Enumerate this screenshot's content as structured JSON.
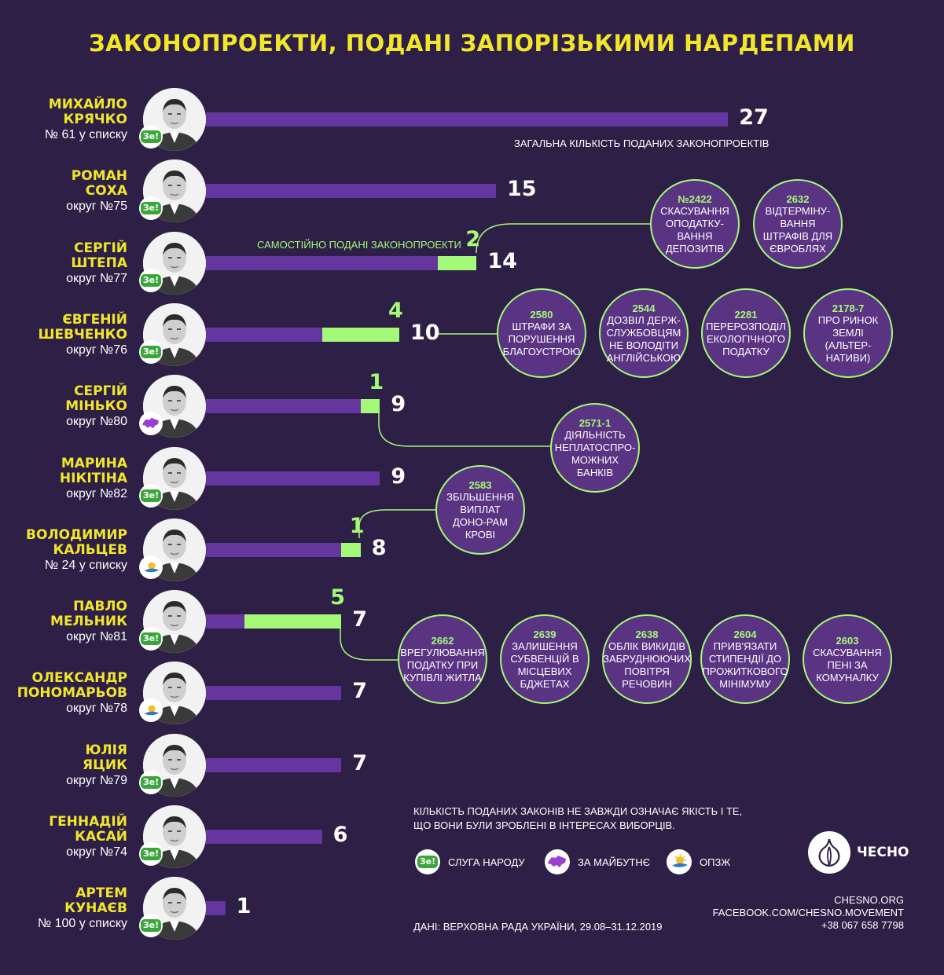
{
  "title": "ЗАКОНОПРОЕКТИ, ПОДАНІ ЗАПОРІЗЬКИМИ НАРДЕПАМИ",
  "notes": {
    "total_caption": "ЗАГАЛЬНА  КІЛЬКІСТЬ ПОДАНИХ ЗАКОНОПРОЕКТІВ",
    "self_caption": "САМОСТІЙНО ПОДАНІ ЗАКОНОПРОЕКТИ"
  },
  "badges": {
    "ze_text": "Зе!"
  },
  "colors": {
    "background": "#2d1f45",
    "title": "#f2e62a",
    "bar": "#6636a0",
    "self": "#a4fa78",
    "bubble": "#5a3383"
  },
  "chart_data": {
    "type": "bar",
    "orientation": "horizontal",
    "title": "ЗАКОНОПРОЕКТИ, ПОДАНІ ЗАПОРІЗЬКИМИ НАРДЕПАМИ",
    "categories": [
      "МИХАЙЛО КРЯЧКО",
      "РОМАН СОХА",
      "СЕРГІЙ ШТЕПА",
      "ЄВГЕНІЙ ШЕВЧЕНКО",
      "СЕРГІЙ МІНЬКО",
      "МАРИНА НІКІТІНА",
      "ВОЛОДИМИР КАЛЬЦЕВ",
      "ПАВЛО МЕЛЬНИК",
      "ОЛЕКСАНДР ПОНОМАРЬОВ",
      "ЮЛІЯ ЯЦИК",
      "ГЕННАДІЙ КАСАЙ",
      "АРТЕМ КУНАЄВ"
    ],
    "series": [
      {
        "name": "ЗАГАЛЬНА  КІЛЬКІСТЬ ПОДАНИХ ЗАКОНОПРОЕКТІВ",
        "values": [
          27,
          15,
          14,
          10,
          9,
          9,
          8,
          7,
          7,
          7,
          6,
          1
        ]
      },
      {
        "name": "САМОСТІЙНО ПОДАНІ ЗАКОНОПРОЕКТИ",
        "values": [
          0,
          0,
          2,
          4,
          1,
          0,
          1,
          5,
          0,
          0,
          0,
          0
        ]
      }
    ],
    "xlim": [
      0,
      27
    ],
    "rows": [
      {
        "first": "МИХАЙЛО",
        "last": "КРЯЧКО",
        "district": "№ 61 у списку",
        "party": "ze",
        "total": 27,
        "self": 0,
        "self_label": ""
      },
      {
        "first": "РОМАН",
        "last": "СОХА",
        "district": "округ №75",
        "party": "ze",
        "total": 15,
        "self": 0,
        "self_label": ""
      },
      {
        "first": "СЕРГІЙ",
        "last": "ШТЕПА",
        "district": "округ №77",
        "party": "ze",
        "total": 14,
        "self": 2,
        "self_label": "2"
      },
      {
        "first": "ЄВГЕНІЙ",
        "last": "ШЕВЧЕНКО",
        "district": "округ №76",
        "party": "ze",
        "total": 10,
        "self": 4,
        "self_label": "4"
      },
      {
        "first": "СЕРГІЙ",
        "last": "МІНЬКО",
        "district": "округ №80",
        "party": "maybutne",
        "total": 9,
        "self": 1,
        "self_label": "1"
      },
      {
        "first": "МАРИНА",
        "last": "НІКІТІНА",
        "district": "округ №82",
        "party": "ze",
        "total": 9,
        "self": 0,
        "self_label": ""
      },
      {
        "first": "ВОЛОДИМИР",
        "last": "КАЛЬЦЕВ",
        "district": "№ 24 у списку",
        "party": "opzzh",
        "total": 8,
        "self": 1,
        "self_label": "1"
      },
      {
        "first": "ПАВЛО",
        "last": "МЕЛЬНИК",
        "district": "округ №81",
        "party": "ze",
        "total": 7,
        "self": 5,
        "self_label": "5"
      },
      {
        "first": "ОЛЕКСАНДР",
        "last": "ПОНОМАРЬОВ",
        "district": "округ №78",
        "party": "opzzh",
        "total": 7,
        "self": 0,
        "self_label": ""
      },
      {
        "first": "ЮЛІЯ",
        "last": "ЯЦИК",
        "district": "округ №79",
        "party": "ze",
        "total": 7,
        "self": 0,
        "self_label": ""
      },
      {
        "first": "ГЕННАДІЙ",
        "last": "КАСАЙ",
        "district": "округ №74",
        "party": "ze",
        "total": 6,
        "self": 0,
        "self_label": ""
      },
      {
        "first": "АРТЕМ",
        "last": "КУНАЄВ",
        "district": "№ 100 у списку",
        "party": "ze",
        "total": 1,
        "self": 0,
        "self_label": ""
      }
    ]
  },
  "bills": [
    {
      "row": 2,
      "num": "№2422",
      "text": "СКАСУВАННЯ ОПОДАТКУ-ВАННЯ ДЕПОЗИТІВ"
    },
    {
      "row": 2,
      "num": "2632",
      "text": "ВІДТЕРМІНУ-ВАННЯ ШТРАФІВ ДЛЯ ЄВРОБЛЯХ"
    },
    {
      "row": 3,
      "num": "2580",
      "text": "ШТРАФИ ЗА ПОРУШЕННЯ БЛАГОУСТРОЮ"
    },
    {
      "row": 3,
      "num": "2544",
      "text": "ДОЗВІЛ ДЕРЖ-СЛУЖБОВЦЯМ НЕ ВОЛОДІТИ АНГЛІЙСЬКОЮ"
    },
    {
      "row": 3,
      "num": "2281",
      "text": "ПЕРЕРОЗПОДІЛ ЕКОЛОГІЧНОГО ПОДАТКУ"
    },
    {
      "row": 3,
      "num": "2178-7",
      "text": "ПРО РИНОК ЗЕМЛІ (АЛЬТЕР-НАТИВИ)"
    },
    {
      "row": 4,
      "num": "2571-1",
      "text": "ДІЯЛЬНІСТЬ НЕПЛАТОСПРО-МОЖНИХ БАНКІВ"
    },
    {
      "row": 6,
      "num": "2583",
      "text": "ЗБІЛЬШЕННЯ ВИПЛАТ ДОНО-РАМ КРОВІ"
    },
    {
      "row": 7,
      "num": "2662",
      "text": "ВРЕГУЛЮВАННЯ ПОДАТКУ ПРИ КУПІВЛІ ЖИТЛА"
    },
    {
      "row": 7,
      "num": "2639",
      "text": "ЗАЛИШЕННЯ СУБВЕНЦІЙ В МІСЦЕВИХ БДЖЕТАХ"
    },
    {
      "row": 7,
      "num": "2638",
      "text": "ОБЛІК ВИКИДІВ ЗАБРУДНЮЮЧИХ ПОВІТРЯ РЕЧОВИН"
    },
    {
      "row": 7,
      "num": "2604",
      "text": "ПРИВ'ЯЗАТИ СТИПЕНДІЇ ДО ПРОЖИТКОВОГО МІНІМУМУ"
    },
    {
      "row": 7,
      "num": "2603",
      "text": "СКАСУВАННЯ ПЕНІ ЗА КОМУНАЛКУ"
    }
  ],
  "footer": {
    "disclaimer_1": "КІЛЬКІСТЬ ПОДАНИХ ЗАКОНІВ НЕ ЗАВЖДИ ОЗНАЧАЄ ЯКІСТЬ І ТЕ,",
    "disclaimer_2": "ЩО ВОНИ БУЛИ ЗРОБЛЕНІ В ІНТЕРЕСАХ ВИБОРЦІВ.",
    "source": "ДАНІ: ВЕРХОВНА РАДА УКРАЇНИ, 29.08–31.12.2019",
    "legend": [
      {
        "party": "ze",
        "label": "СЛУГА НАРОДУ"
      },
      {
        "party": "maybutne",
        "label": "ЗА МАЙБУТНЄ"
      },
      {
        "party": "opzzh",
        "label": "ОПЗЖ"
      }
    ],
    "logo": "ЧЕСНО",
    "site": "CHESNO.ORG",
    "facebook": "FACEBOOK.COM/CHESNO.MOVEMENT",
    "phone": "+38 067 658 7798"
  }
}
